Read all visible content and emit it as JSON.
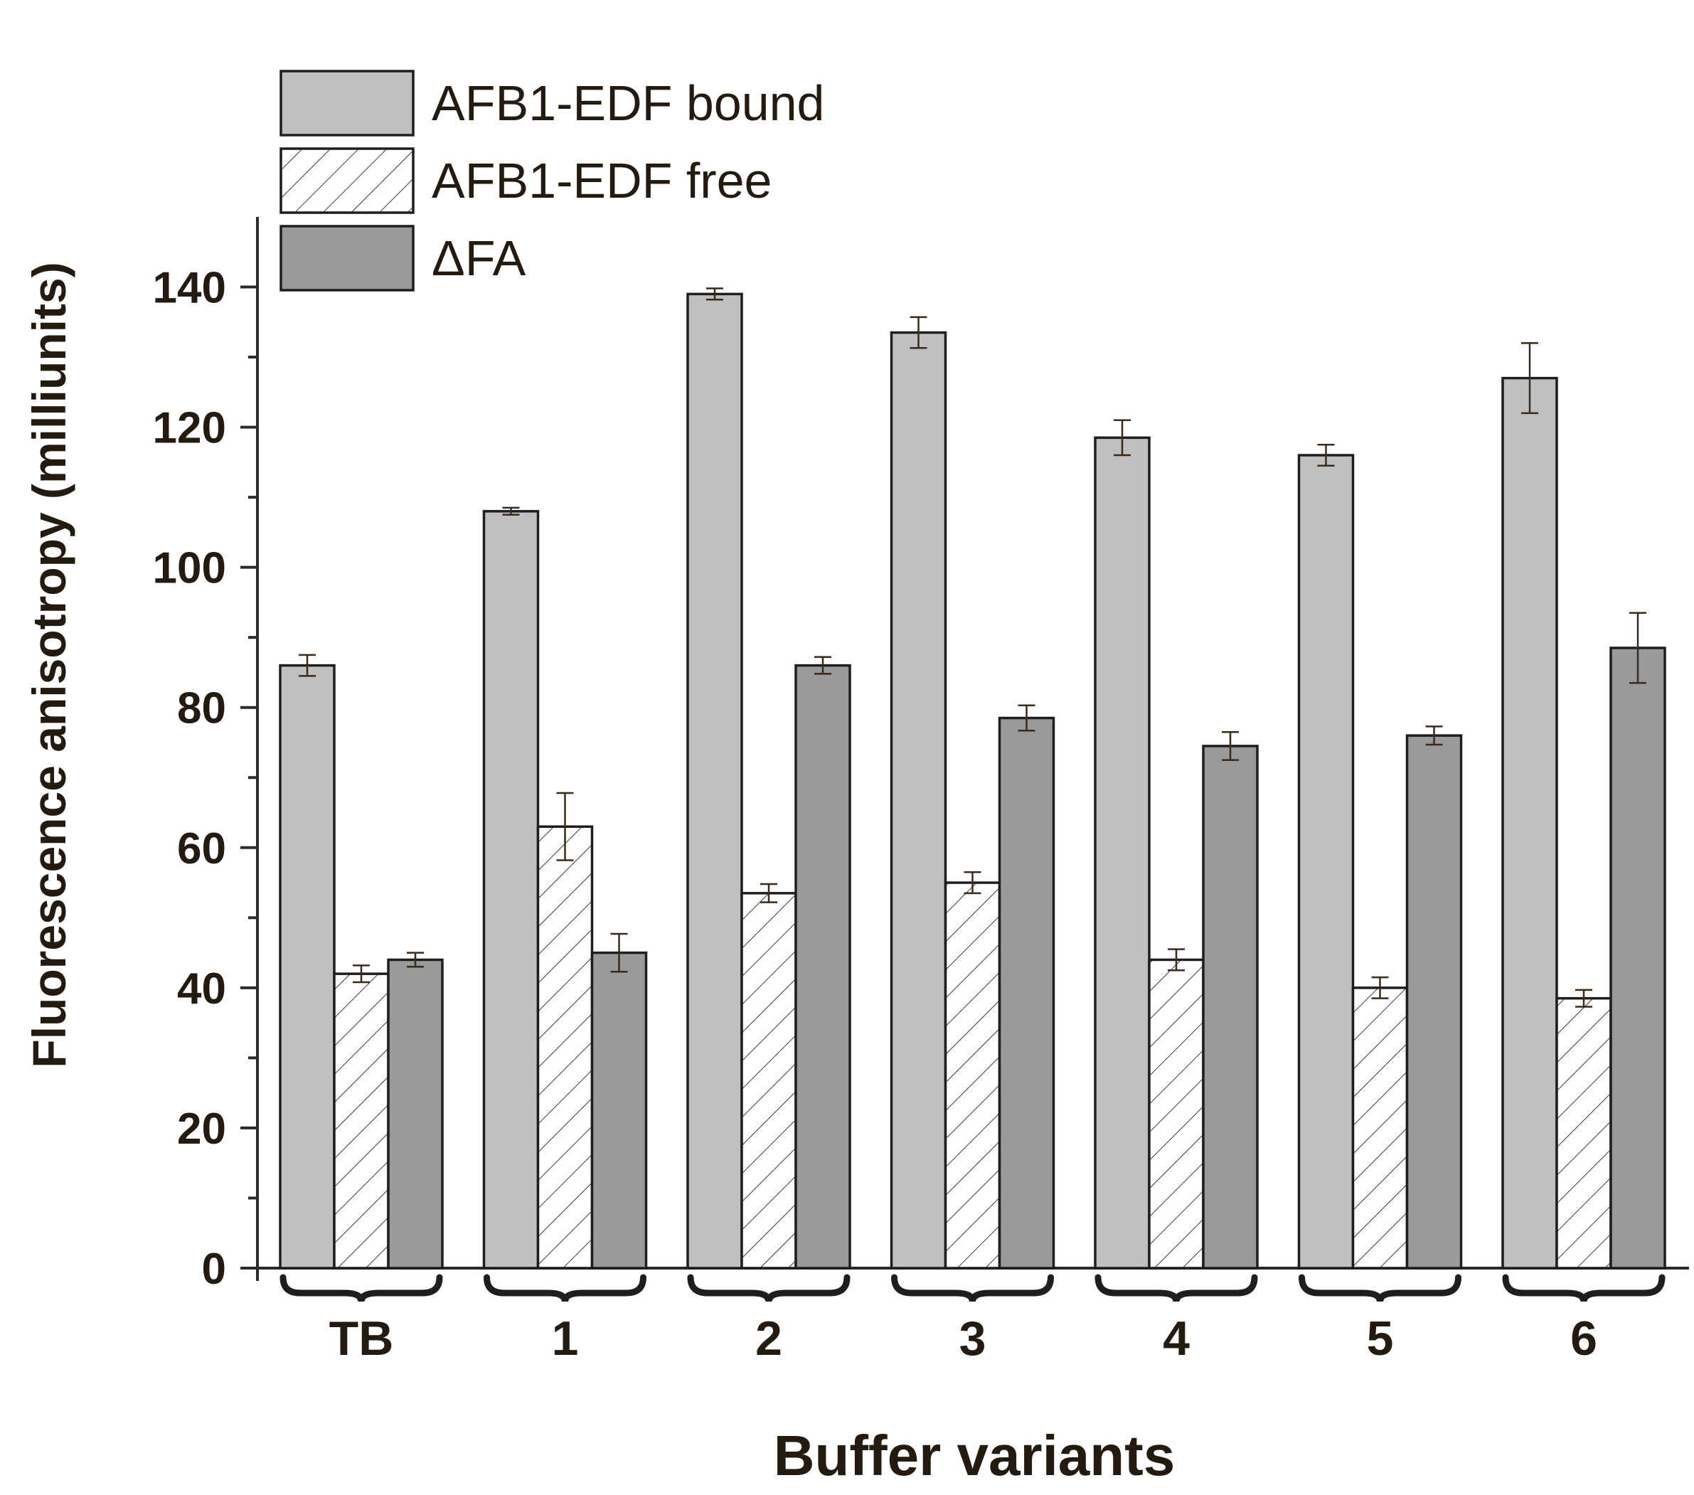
{
  "chart_data": {
    "type": "bar",
    "title": "",
    "xlabel": "Buffer variants",
    "ylabel": "Fluorescence anisotropy (milliunits)",
    "ylim": [
      0,
      150
    ],
    "yticks": [
      0,
      20,
      40,
      60,
      80,
      100,
      120,
      140
    ],
    "categories": [
      "TB",
      "1",
      "2",
      "3",
      "4",
      "5",
      "6"
    ],
    "legend_position": "top-left",
    "series": [
      {
        "name": "AFB1-EDF bound",
        "style": "solid-light",
        "color": "#c0c0c0",
        "values": [
          86,
          108,
          139,
          133.5,
          118.5,
          116,
          127
        ],
        "errors": [
          1.5,
          0.5,
          0.8,
          2.2,
          2.5,
          1.5,
          5
        ]
      },
      {
        "name": "AFB1-EDF free",
        "style": "hatched",
        "color": "#ffffff",
        "values": [
          42,
          63,
          53.5,
          55,
          44,
          40,
          38.5
        ],
        "errors": [
          1.2,
          4.8,
          1.3,
          1.5,
          1.5,
          1.5,
          1.2
        ]
      },
      {
        "name": "ΔFA",
        "style": "solid-dark",
        "color": "#9a9a9a",
        "values": [
          44,
          45,
          86,
          78.5,
          74.5,
          76,
          88.5
        ],
        "errors": [
          1,
          2.7,
          1.2,
          1.8,
          2,
          1.3,
          5
        ]
      }
    ]
  }
}
